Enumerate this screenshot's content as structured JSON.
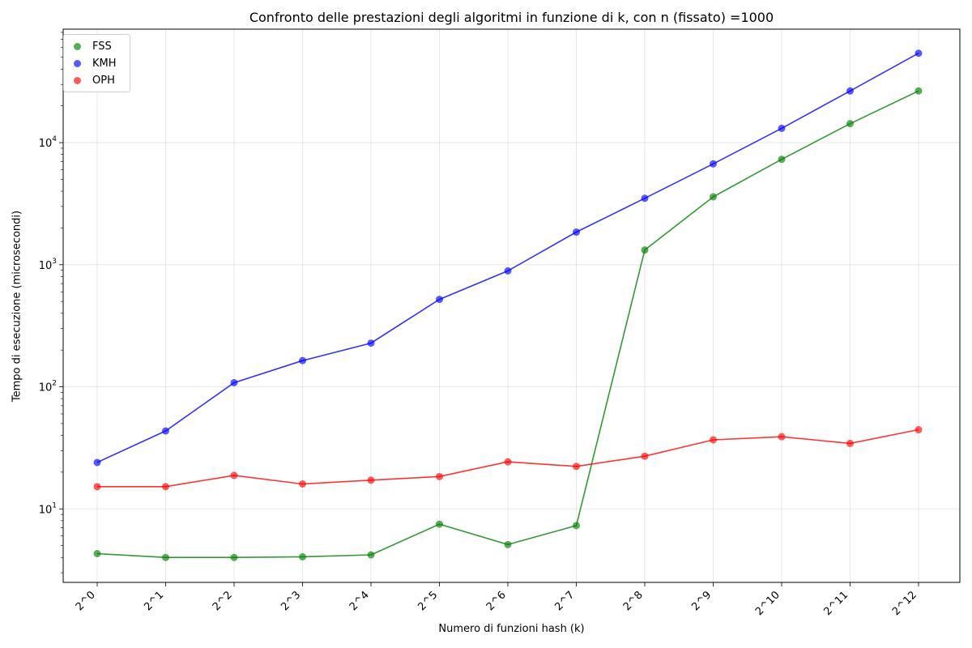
{
  "chart_data": {
    "type": "line",
    "title": "Confronto delle prestazioni degli algoritmi in funzione di k, con n (fissato) =1000",
    "xlabel": "Numero di funzioni hash (k)",
    "ylabel": "Tempo di esecuzione (microsecondi)",
    "categories": [
      "2^0",
      "2^1",
      "2^2",
      "2^3",
      "2^4",
      "2^5",
      "2^6",
      "2^7",
      "2^8",
      "2^9",
      "2^10",
      "2^11",
      "2^12"
    ],
    "y_scale": "log",
    "ylim": [
      2.5,
      85000
    ],
    "y_ticks": [
      {
        "value": 10,
        "base": "10",
        "exp": "1"
      },
      {
        "value": 100,
        "base": "10",
        "exp": "2"
      },
      {
        "value": 1000,
        "base": "10",
        "exp": "3"
      },
      {
        "value": 10000,
        "base": "10",
        "exp": "4"
      }
    ],
    "grid": true,
    "legend_position": "top-left",
    "series": [
      {
        "name": "FSS",
        "color": "#008000",
        "values": [
          4.3,
          4.0,
          4.0,
          4.05,
          4.2,
          7.5,
          5.1,
          7.3,
          1320,
          3600,
          7300,
          14300,
          26500
        ]
      },
      {
        "name": "KMH",
        "color": "#0000ff",
        "values": [
          24,
          43.5,
          108,
          164,
          228,
          520,
          890,
          1850,
          3500,
          6700,
          13100,
          26500,
          54000
        ]
      },
      {
        "name": "OPH",
        "color": "#ff0000",
        "values": [
          15.2,
          15.2,
          18.8,
          16.0,
          17.2,
          18.4,
          24.3,
          22.3,
          27.0,
          36.8,
          39.0,
          34.4,
          44.5
        ]
      }
    ]
  }
}
